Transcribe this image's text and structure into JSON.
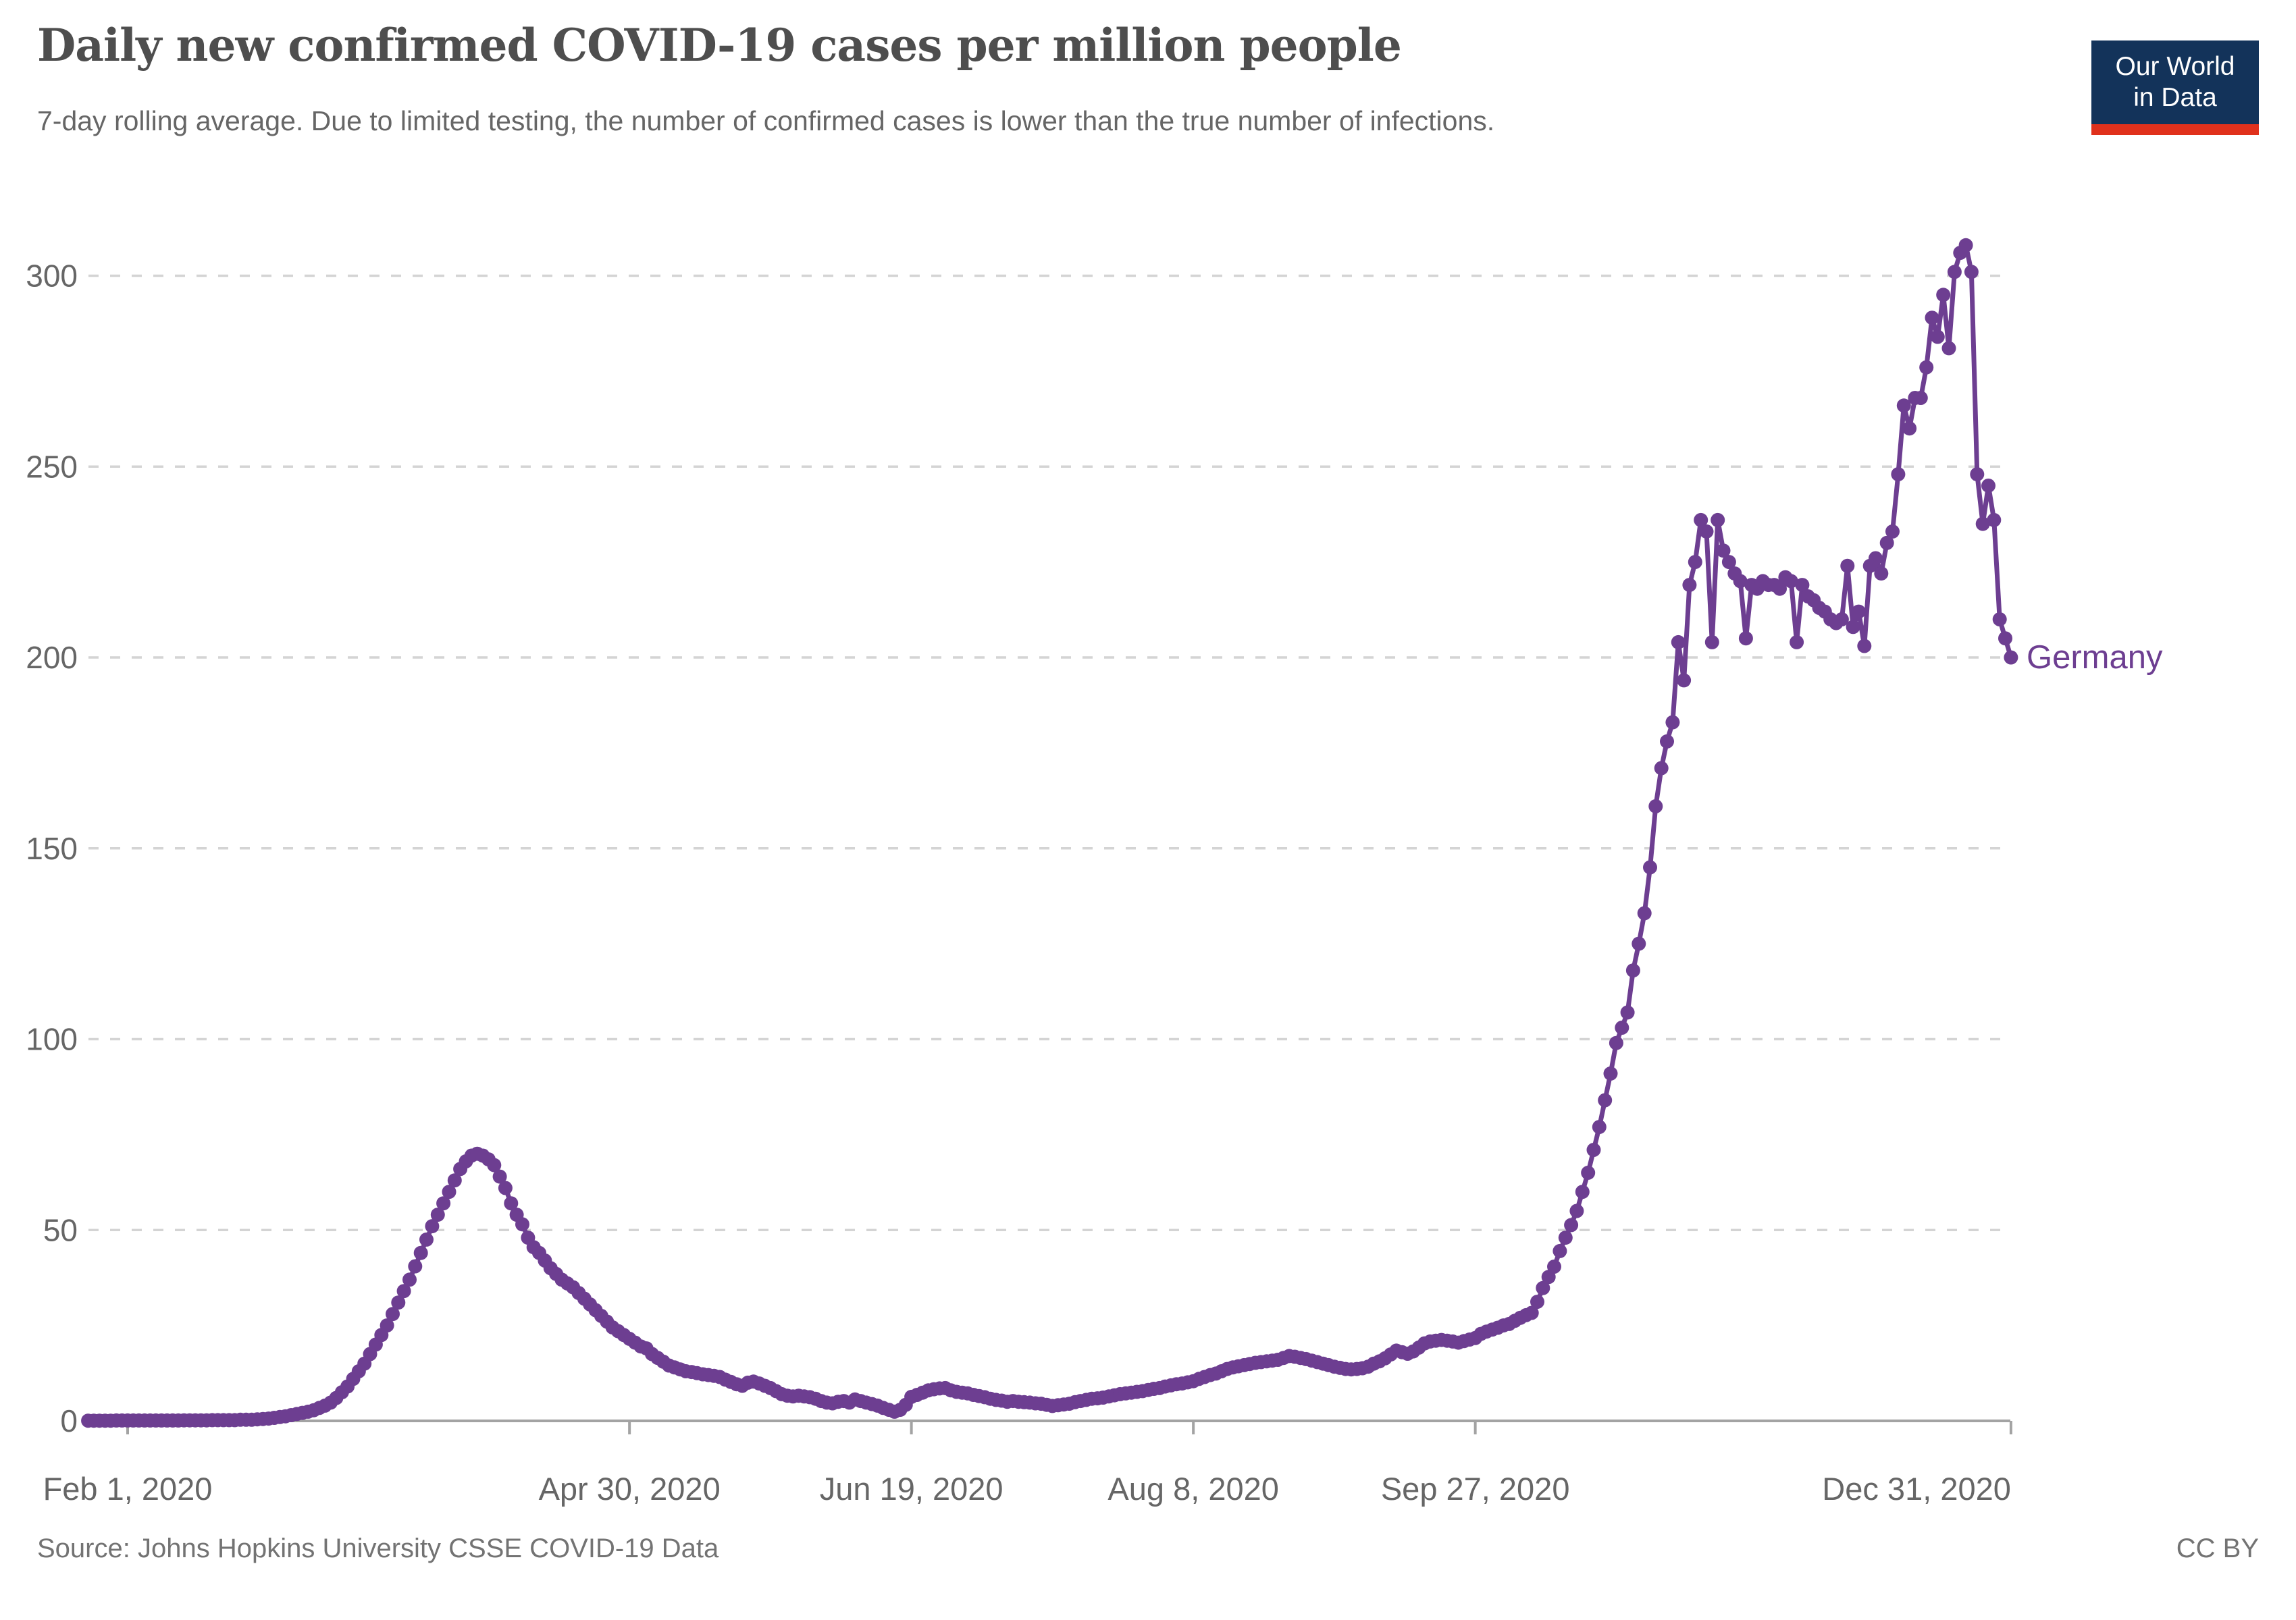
{
  "header": {
    "title": "Daily new confirmed COVID-19 cases per million people",
    "subtitle": "7-day rolling average. Due to limited testing, the number of confirmed cases is lower than the true number of infections.",
    "logo": {
      "line1": "Our World",
      "line2": "in Data",
      "bg_color": "#13335a",
      "accent_color": "#e0311c",
      "text_color": "#ffffff"
    }
  },
  "footer": {
    "source": "Source: Johns Hopkins University CSSE COVID-19 Data",
    "license": "CC BY"
  },
  "chart_data": {
    "type": "line",
    "title": "Daily new confirmed COVID-19 cases per million people",
    "xlabel": "",
    "ylabel": "",
    "ylim": [
      0,
      310
    ],
    "grid": "horizontal-dashed",
    "legend_position": "end-of-line-label",
    "end_label": "Germany",
    "colors": {
      "line": "#6d3e91",
      "grid": "#d4d4d4",
      "axis": "#a3a3a3",
      "tick_text": "#666666"
    },
    "y_ticks": [
      0,
      50,
      100,
      150,
      200,
      250,
      300
    ],
    "x_ticks": [
      {
        "label": "Feb 1, 2020",
        "day": 0,
        "align": "middle"
      },
      {
        "label": "Apr 30, 2020",
        "day": 89,
        "align": "middle"
      },
      {
        "label": "Jun 19, 2020",
        "day": 139,
        "align": "middle"
      },
      {
        "label": "Aug 8, 2020",
        "day": 189,
        "align": "middle"
      },
      {
        "label": "Sep 27, 2020",
        "day": 239,
        "align": "middle"
      },
      {
        "label": "Dec 31, 2020",
        "day": 334,
        "align": "end"
      }
    ],
    "series": [
      {
        "name": "Germany",
        "color": "#6d3e91",
        "cadence": "daily",
        "start_date": "Jan 25, 2020",
        "end_date": "Dec 31, 2020",
        "start_offset_days_from_feb1": -7,
        "values": [
          0.05,
          0.05,
          0.05,
          0.05,
          0.05,
          0.1,
          0.1,
          0.1,
          0.1,
          0.1,
          0.1,
          0.1,
          0.1,
          0.1,
          0.1,
          0.1,
          0.1,
          0.15,
          0.15,
          0.15,
          0.15,
          0.15,
          0.2,
          0.2,
          0.2,
          0.2,
          0.2,
          0.3,
          0.3,
          0.3,
          0.4,
          0.5,
          0.6,
          0.8,
          1.0,
          1.2,
          1.5,
          1.8,
          2.1,
          2.4,
          2.8,
          3.4,
          4.0,
          4.8,
          6.0,
          7.5,
          9.0,
          11,
          13,
          15,
          17.5,
          20,
          22.5,
          25,
          28,
          31,
          34,
          37,
          40.5,
          44,
          47.5,
          51,
          54,
          57,
          60,
          63,
          66,
          68,
          69.5,
          70,
          69.5,
          68.5,
          67,
          64,
          61,
          57,
          54,
          51.5,
          48,
          45.5,
          44,
          42,
          40,
          38.5,
          37,
          36,
          35,
          33.5,
          32,
          30.5,
          29,
          27.5,
          26,
          24.5,
          23.5,
          22.5,
          21.5,
          20.5,
          19.5,
          19,
          17.5,
          16.5,
          15.5,
          14.5,
          14,
          13.5,
          13,
          12.8,
          12.5,
          12.2,
          12,
          11.8,
          11.5,
          10.8,
          10.2,
          9.6,
          9.2,
          10,
          10.3,
          9.8,
          9.2,
          8.6,
          7.8,
          7.0,
          6.6,
          6.4,
          6.6,
          6.4,
          6.2,
          5.8,
          5.2,
          4.8,
          4.6,
          5.0,
          5.2,
          4.8,
          5.6,
          5.2,
          4.8,
          4.4,
          4.0,
          3.4,
          2.9,
          2.4,
          2.9,
          4.2,
          6.3,
          6.8,
          7.4,
          8.0,
          8.3,
          8.5,
          8.6,
          8.0,
          7.6,
          7.4,
          7.2,
          6.8,
          6.5,
          6.2,
          5.8,
          5.5,
          5.3,
          5.0,
          5.2,
          5.0,
          4.9,
          4.8,
          4.6,
          4.5,
          4.2,
          3.9,
          4.1,
          4.3,
          4.5,
          4.9,
          5.2,
          5.5,
          5.8,
          5.9,
          6.1,
          6.4,
          6.7,
          7.0,
          7.2,
          7.4,
          7.6,
          7.8,
          8.1,
          8.4,
          8.6,
          9.0,
          9.3,
          9.6,
          9.8,
          10.1,
          10.4,
          11.0,
          11.5,
          12.0,
          12.4,
          13.0,
          13.6,
          14.0,
          14.3,
          14.6,
          14.9,
          15.2,
          15.4,
          15.6,
          15.8,
          16.0,
          16.5,
          17.0,
          16.8,
          16.5,
          16.2,
          15.8,
          15.4,
          15.0,
          14.6,
          14.2,
          13.9,
          13.6,
          13.5,
          13.6,
          13.8,
          14.2,
          15.0,
          15.6,
          16.4,
          17.4,
          18.4,
          18.0,
          17.6,
          18.2,
          19.2,
          20.3,
          20.8,
          21.0,
          21.2,
          21.0,
          20.8,
          20.5,
          20.9,
          21.3,
          21.7,
          22.8,
          23.4,
          23.9,
          24.4,
          25.0,
          25.4,
          26.2,
          27.0,
          27.7,
          28.3,
          31.2,
          34.8,
          37.7,
          40.4,
          44.5,
          48.0,
          51.3,
          55,
          60,
          65,
          71,
          77,
          84,
          91,
          99,
          103,
          107,
          118,
          125,
          133,
          145,
          161,
          171,
          178,
          183,
          204,
          194,
          219,
          225,
          236,
          233,
          204,
          236,
          228,
          225,
          222,
          220,
          205,
          219,
          218,
          220,
          219,
          219,
          218,
          221,
          220,
          204,
          219,
          216,
          215,
          213,
          212,
          210,
          209,
          210,
          224,
          208,
          212,
          203,
          224,
          226,
          222,
          230,
          233,
          248,
          266,
          260,
          268,
          268,
          276,
          289,
          284,
          295,
          281,
          301,
          306,
          308,
          301,
          248,
          235,
          245,
          236,
          210,
          205,
          200
        ]
      }
    ]
  }
}
